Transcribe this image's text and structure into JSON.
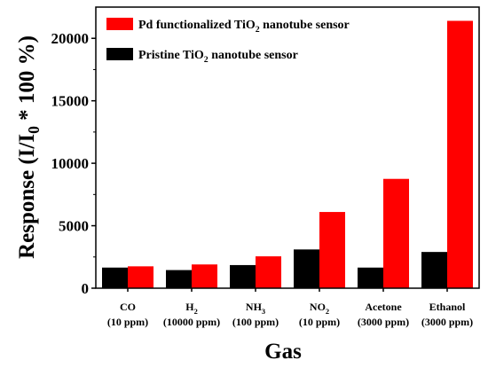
{
  "chart_data": {
    "type": "bar",
    "xlabel": "Gas",
    "ylabel_parts": [
      "Response (I/I",
      "0",
      " * 100 %)"
    ],
    "ylim": [
      0,
      22500
    ],
    "yticks": [
      0,
      5000,
      10000,
      15000,
      20000
    ],
    "ytick_labels": [
      "0",
      "5000",
      "10000",
      "15000",
      "20000"
    ],
    "categories": [
      {
        "line1": [
          "CO"
        ],
        "line2": "(10 ppm)"
      },
      {
        "line1": [
          "H",
          "2"
        ],
        "line2": "(10000 ppm)"
      },
      {
        "line1": [
          "NH",
          "3"
        ],
        "line2": "(100 ppm)"
      },
      {
        "line1": [
          "NO",
          "2"
        ],
        "line2": "(10 ppm)"
      },
      {
        "line1": [
          "Acetone"
        ],
        "line2": "(3000 ppm)"
      },
      {
        "line1": [
          "Ethanol"
        ],
        "line2": "(3000 ppm)"
      }
    ],
    "series": [
      {
        "name_parts": [
          "Pristine TiO",
          "2",
          " nanotube sensor"
        ],
        "color": "#000000",
        "values": [
          1650,
          1450,
          1850,
          3100,
          1650,
          2900
        ]
      },
      {
        "name_parts": [
          "Pd functionalized TiO",
          "2",
          " nanotube sensor"
        ],
        "color": "#ff0000",
        "values": [
          1750,
          1900,
          2550,
          6100,
          8750,
          21400
        ]
      }
    ],
    "legend": {
      "placement": "top-left",
      "order": [
        1,
        0
      ]
    }
  }
}
